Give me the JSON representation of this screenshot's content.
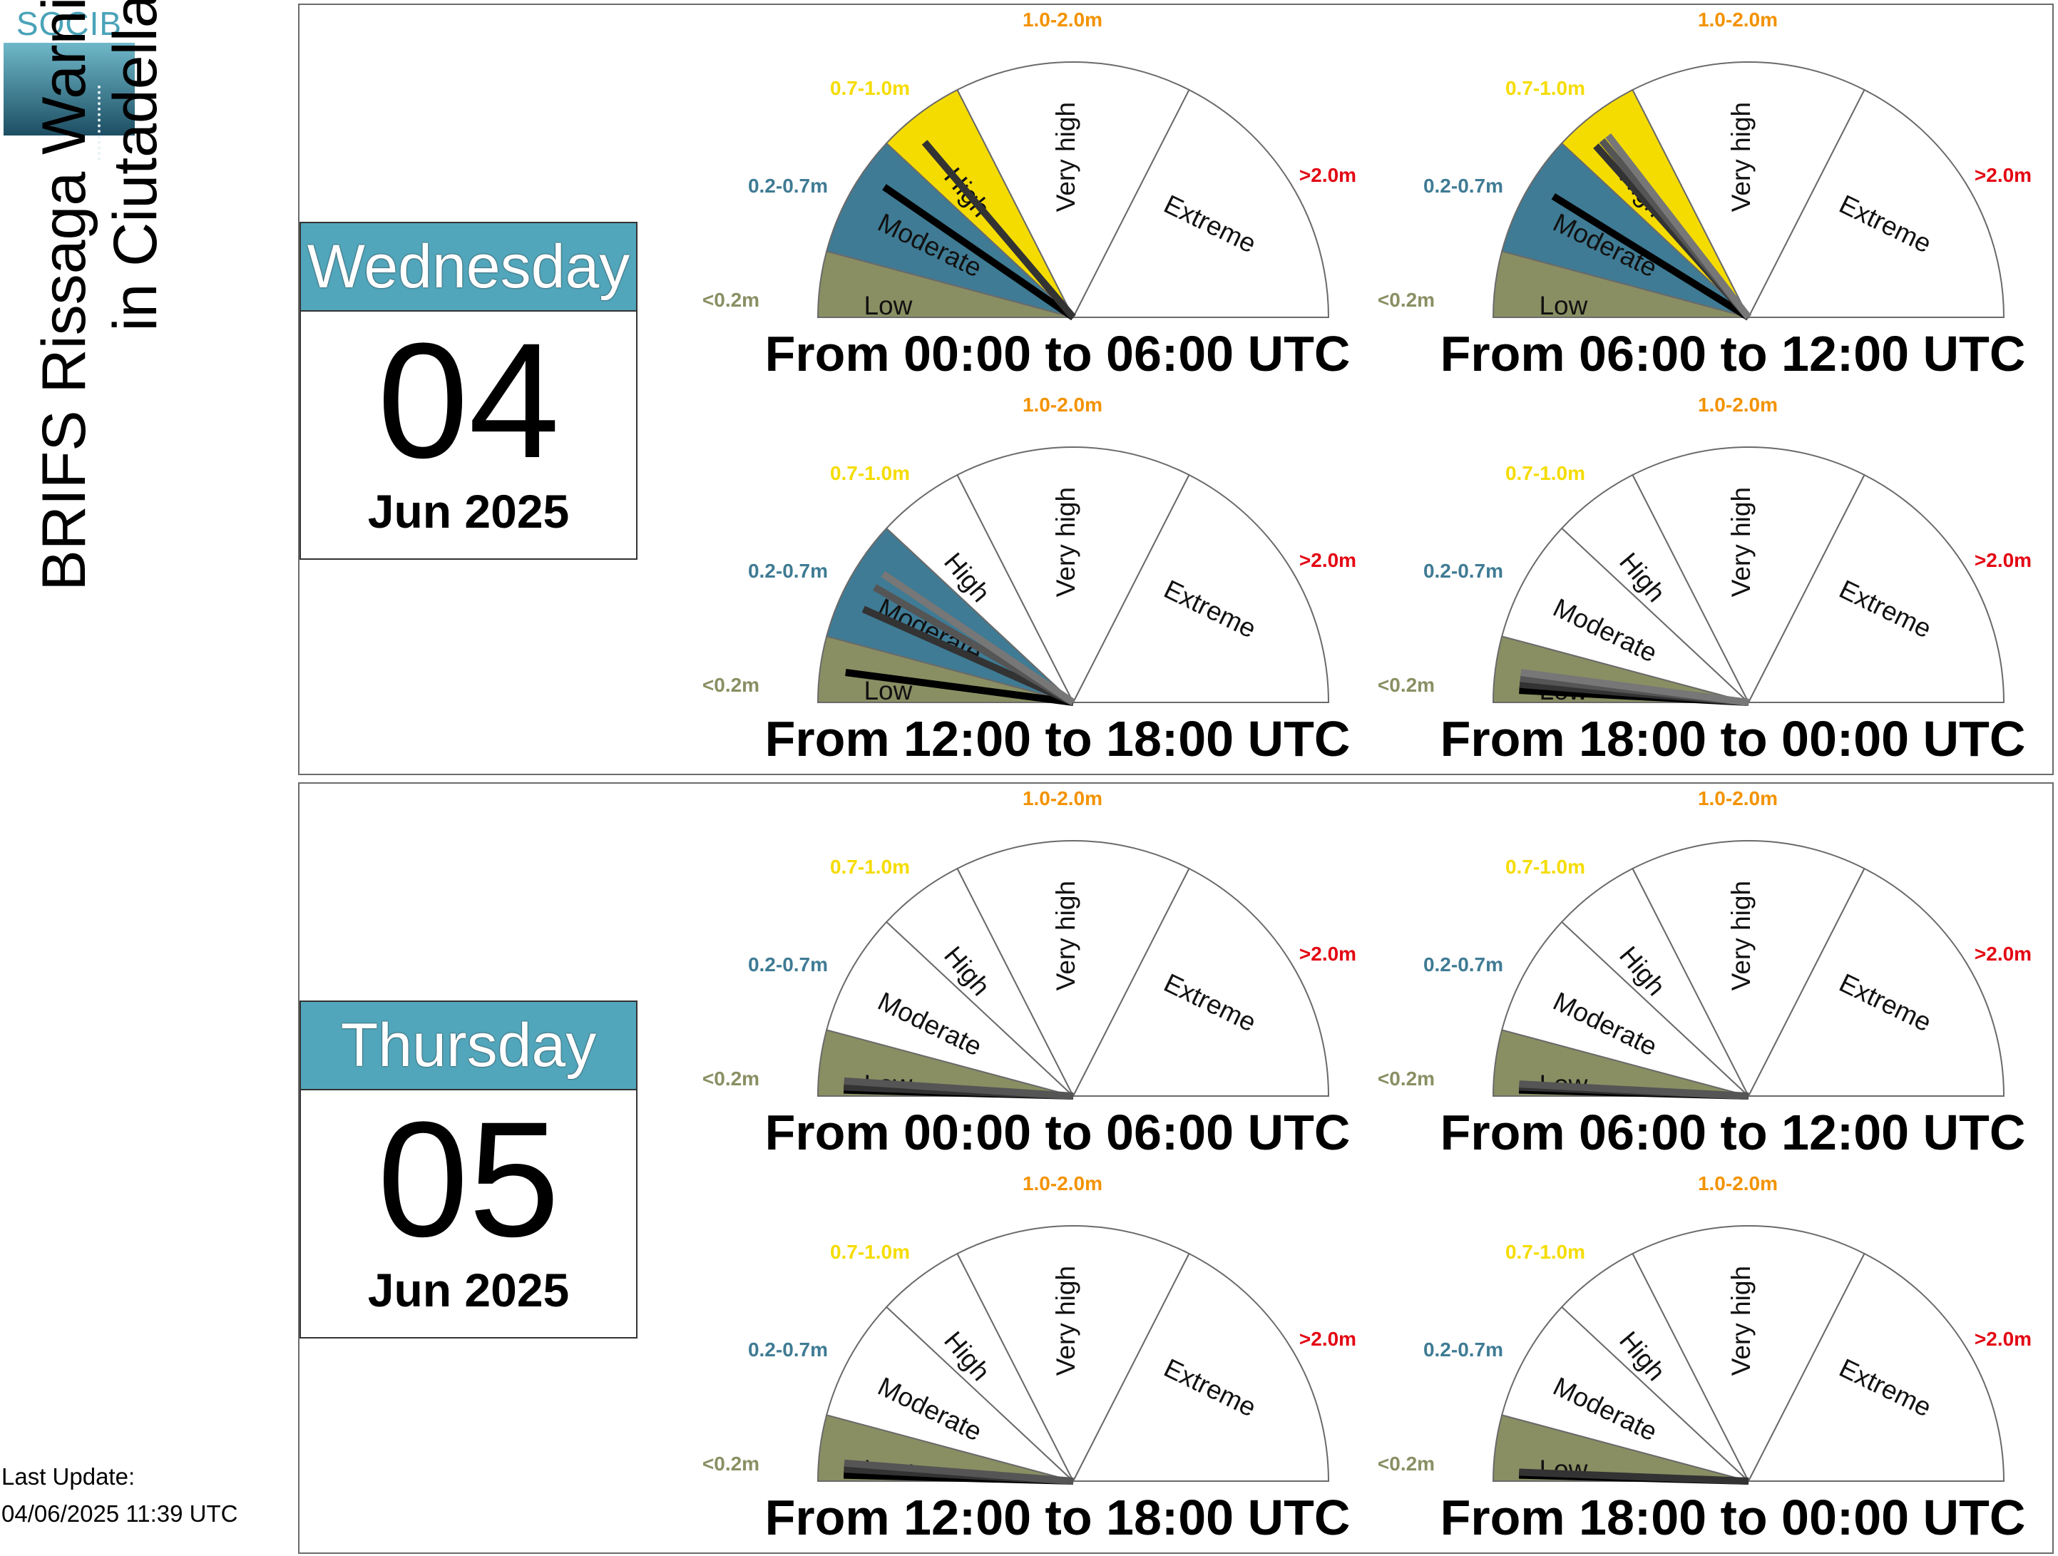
{
  "logo_text": "SOCIB",
  "title_line1": "BRIFS Rissaga Warning Levels",
  "title_line2": "in Ciutadella",
  "last_update_label": "Last Update:",
  "last_update_value": "04/06/2025 11:39 UTC",
  "colors": {
    "low": "#8a8f63",
    "moderate": "#3f7b94",
    "high": "#f5dc00",
    "very_high": "#f39200",
    "extreme": "#e30613",
    "lines": [
      "#000000",
      "#333333",
      "#555555",
      "#777777",
      "#999999"
    ]
  },
  "chart_data": {
    "type": "gauge",
    "categories": [
      "Low",
      "Moderate",
      "High",
      "Very high",
      "Extreme"
    ],
    "ranges": [
      "<0.2m",
      "0.2-0.7m",
      "0.7-1.0m",
      "1.0-2.0m",
      ">2.0m"
    ],
    "scale_breaks_m": [
      0,
      0.2,
      0.7,
      1.0,
      2.0,
      3.0
    ],
    "days": [
      {
        "weekday": "Wednesday",
        "day": "04",
        "month_year": "Jun 2025",
        "periods": [
          {
            "label": "From 00:00 to 06:00 UTC",
            "active_level": "High",
            "forecast_values_m": [
              0.55,
              0.8
            ]
          },
          {
            "label": "From 06:00 to 12:00 UTC",
            "active_level": "High",
            "forecast_values_m": [
              0.5,
              0.78,
              0.81,
              0.84
            ]
          },
          {
            "label": "From 12:00 to 18:00 UTC",
            "active_level": "Moderate",
            "forecast_values_m": [
              0.1,
              0.36,
              0.47,
              0.54
            ]
          },
          {
            "label": "From 18:00 to 00:00 UTC",
            "active_level": "Low",
            "forecast_values_m": [
              0.04,
              0.06,
              0.08,
              0.1
            ]
          }
        ]
      },
      {
        "weekday": "Thursday",
        "day": "05",
        "month_year": "Jun 2025",
        "periods": [
          {
            "label": "From 00:00 to 06:00 UTC",
            "active_level": "Low",
            "forecast_values_m": [
              0.02,
              0.03,
              0.05
            ]
          },
          {
            "label": "From 06:00 to 12:00 UTC",
            "active_level": "Low",
            "forecast_values_m": [
              0.02,
              0.03,
              0.04
            ]
          },
          {
            "label": "From 12:00 to 18:00 UTC",
            "active_level": "Low",
            "forecast_values_m": [
              0.02,
              0.04,
              0.06
            ]
          },
          {
            "label": "From 18:00 to 00:00 UTC",
            "active_level": "Low",
            "forecast_values_m": [
              0.02,
              0.03
            ]
          }
        ]
      }
    ]
  }
}
